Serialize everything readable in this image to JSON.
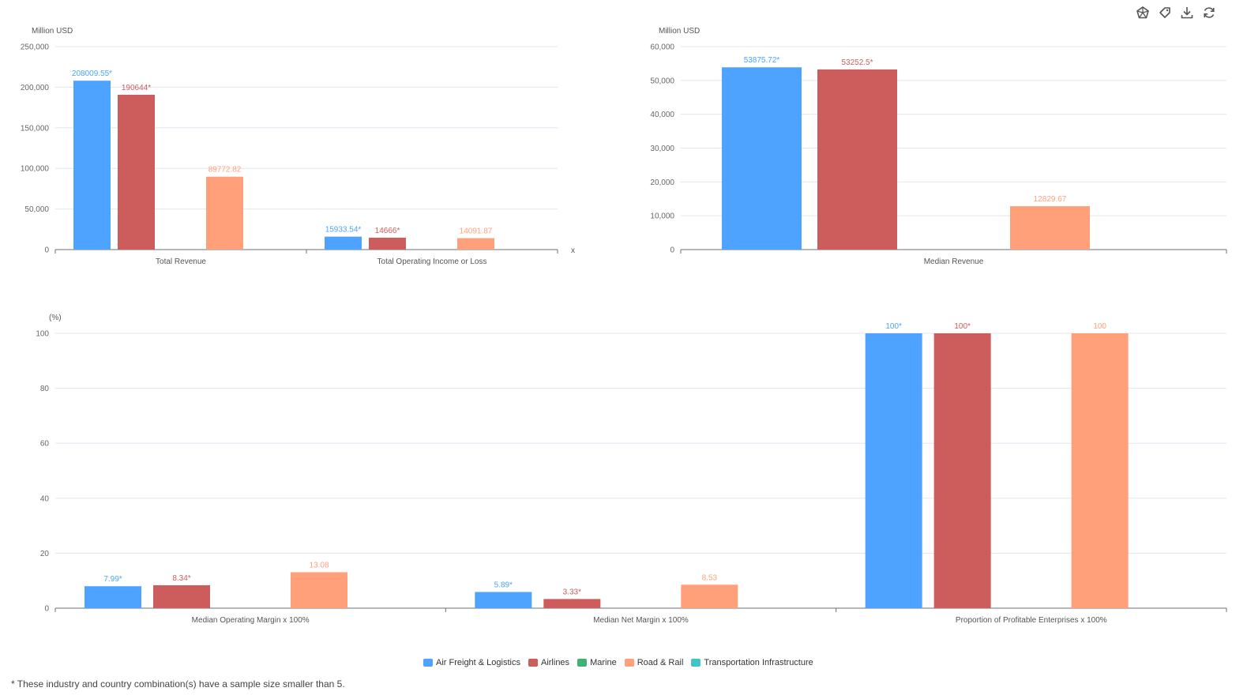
{
  "toolbar": {
    "icons": [
      "chart-type-icon",
      "tag-icon",
      "download-icon",
      "refresh-icon"
    ]
  },
  "footnote": "* These industry and country combination(s) have a sample size smaller than 5.",
  "colors": {
    "Air Freight & Logistics": "#4da3ff",
    "Airlines": "#cd5c5c",
    "Marine": "#3cb371",
    "Road & Rail": "#ffa07a",
    "Transportation Infrastructure": "#40c4c4"
  },
  "legend": [
    "Air Freight & Logistics",
    "Airlines",
    "Marine",
    "Road & Rail",
    "Transportation Infrastructure"
  ],
  "chart_data": [
    {
      "type": "bar",
      "ylabel": "Million USD",
      "xlabel": "x",
      "ylim": [
        0,
        250000
      ],
      "yticks": [
        "0",
        "50,000",
        "100,000",
        "150,000",
        "200,000",
        "250,000"
      ],
      "grid": true,
      "categories": [
        "Total Revenue",
        "Total Operating Income or Loss"
      ],
      "series": [
        {
          "name": "Air Freight & Logistics",
          "values": [
            208009.55,
            15933.54
          ],
          "labels": [
            "208009.55*",
            "15933.54*"
          ]
        },
        {
          "name": "Airlines",
          "values": [
            190644,
            14666
          ],
          "labels": [
            "190644*",
            "14666*"
          ]
        },
        {
          "name": "Marine",
          "values": [
            null,
            null
          ],
          "labels": [
            "",
            ""
          ]
        },
        {
          "name": "Road & Rail",
          "values": [
            89772.82,
            14091.87
          ],
          "labels": [
            "89772.82",
            "14091.87"
          ]
        },
        {
          "name": "Transportation Infrastructure",
          "values": [
            null,
            null
          ],
          "labels": [
            "",
            ""
          ]
        }
      ]
    },
    {
      "type": "bar",
      "ylabel": "Million USD",
      "ylim": [
        0,
        60000
      ],
      "yticks": [
        "0",
        "10,000",
        "20,000",
        "30,000",
        "40,000",
        "50,000",
        "60,000"
      ],
      "grid": true,
      "categories": [
        "Median Revenue"
      ],
      "series": [
        {
          "name": "Air Freight & Logistics",
          "values": [
            53875.72
          ],
          "labels": [
            "53875.72*"
          ]
        },
        {
          "name": "Airlines",
          "values": [
            53252.5
          ],
          "labels": [
            "53252.5*"
          ]
        },
        {
          "name": "Marine",
          "values": [
            null
          ],
          "labels": [
            ""
          ]
        },
        {
          "name": "Road & Rail",
          "values": [
            12829.67
          ],
          "labels": [
            "12829.67"
          ]
        },
        {
          "name": "Transportation Infrastructure",
          "values": [
            null
          ],
          "labels": [
            ""
          ]
        }
      ]
    },
    {
      "type": "bar",
      "ylabel": "(%)",
      "ylim": [
        0,
        100
      ],
      "yticks": [
        "0",
        "20",
        "40",
        "60",
        "80",
        "100"
      ],
      "grid": true,
      "categories": [
        "Median Operating Margin x 100%",
        "Median Net Margin x 100%",
        "Proportion of Profitable Enterprises x 100%"
      ],
      "series": [
        {
          "name": "Air Freight & Logistics",
          "values": [
            7.99,
            5.89,
            100
          ],
          "labels": [
            "7.99*",
            "5.89*",
            "100*"
          ]
        },
        {
          "name": "Airlines",
          "values": [
            8.34,
            3.33,
            100
          ],
          "labels": [
            "8.34*",
            "3.33*",
            "100*"
          ]
        },
        {
          "name": "Marine",
          "values": [
            null,
            null,
            null
          ],
          "labels": [
            "",
            "",
            ""
          ]
        },
        {
          "name": "Road & Rail",
          "values": [
            13.08,
            8.53,
            100
          ],
          "labels": [
            "13.08",
            "8.53",
            "100"
          ]
        },
        {
          "name": "Transportation Infrastructure",
          "values": [
            null,
            null,
            null
          ],
          "labels": [
            "",
            "",
            ""
          ]
        }
      ]
    }
  ]
}
